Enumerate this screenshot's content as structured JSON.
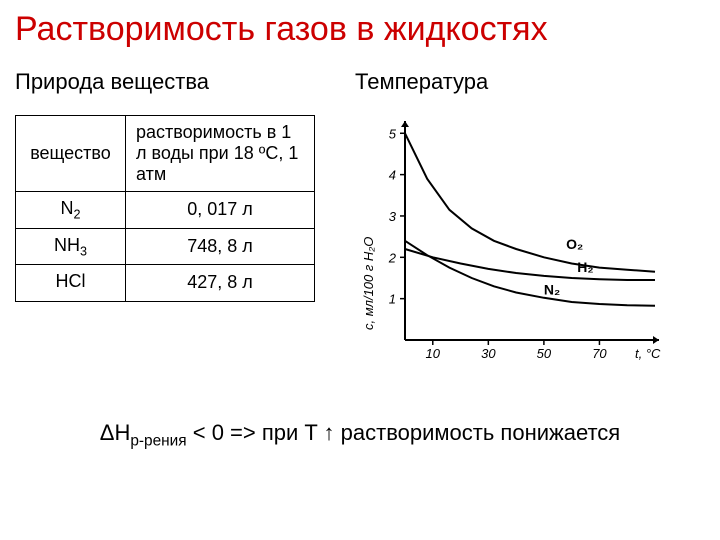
{
  "title": "Растворимость газов в жидкостях",
  "left": {
    "subtitle": "Природа вещества",
    "table": {
      "col1_header": "вещество",
      "col2_header": "растворимость в 1 л воды при 18 ºС, 1 атм",
      "rows": [
        {
          "sub": "N",
          "subn": "2",
          "val": "0, 017 л"
        },
        {
          "sub": "NH",
          "subn": "3",
          "val": "748, 8 л"
        },
        {
          "sub": "HCl",
          "subn": "",
          "val": "427, 8 л"
        }
      ]
    }
  },
  "right": {
    "subtitle": "Температура",
    "chart": {
      "type": "line",
      "background_color": "#ffffff",
      "axis_color": "#000000",
      "line_color": "#000000",
      "line_width": 2,
      "xlim": [
        0,
        90
      ],
      "ylim": [
        0,
        5.2
      ],
      "xticks": [
        10,
        30,
        50,
        70
      ],
      "yticks": [
        1,
        2,
        3,
        4,
        5
      ],
      "xlabel": "t, °C",
      "ylabel": "с, мл/100 г H₂O",
      "curves": [
        {
          "name": "O2",
          "label": "O₂",
          "label_x": 58,
          "label_y": 2.2,
          "points": [
            [
              0,
              5.0
            ],
            [
              8,
              3.9
            ],
            [
              16,
              3.15
            ],
            [
              24,
              2.7
            ],
            [
              32,
              2.4
            ],
            [
              40,
              2.2
            ],
            [
              50,
              2.0
            ],
            [
              60,
              1.85
            ],
            [
              70,
              1.75
            ],
            [
              80,
              1.7
            ],
            [
              90,
              1.65
            ]
          ]
        },
        {
          "name": "H2",
          "label": "H₂",
          "label_x": 62,
          "label_y": 1.65,
          "points": [
            [
              0,
              2.2
            ],
            [
              10,
              2.0
            ],
            [
              20,
              1.85
            ],
            [
              30,
              1.72
            ],
            [
              40,
              1.62
            ],
            [
              50,
              1.55
            ],
            [
              60,
              1.5
            ],
            [
              70,
              1.47
            ],
            [
              80,
              1.45
            ],
            [
              90,
              1.45
            ]
          ]
        },
        {
          "name": "N2",
          "label": "N₂",
          "label_x": 50,
          "label_y": 1.1,
          "points": [
            [
              0,
              2.4
            ],
            [
              8,
              2.05
            ],
            [
              16,
              1.75
            ],
            [
              24,
              1.5
            ],
            [
              32,
              1.3
            ],
            [
              40,
              1.15
            ],
            [
              50,
              1.02
            ],
            [
              60,
              0.92
            ],
            [
              70,
              0.87
            ],
            [
              80,
              0.84
            ],
            [
              90,
              0.83
            ]
          ]
        }
      ]
    }
  },
  "formula": {
    "prefix": "ΔH",
    "sub": "р-рения",
    "rest": " < 0 => при T ↑ растворимость понижается"
  }
}
